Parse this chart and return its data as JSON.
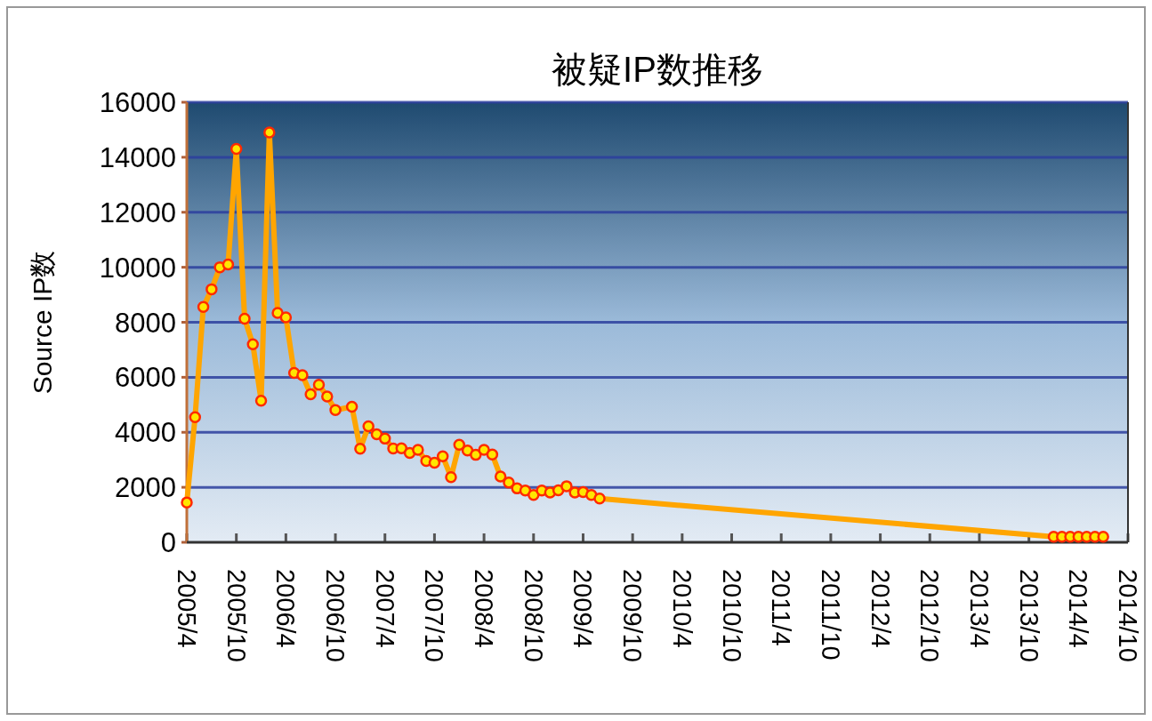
{
  "chart_data": {
    "type": "line",
    "title": "被疑IP数推移",
    "ylabel": "Source IP数",
    "x": [
      "2005-04",
      "2005-05",
      "2005-06",
      "2005-07",
      "2005-08",
      "2005-09",
      "2005-10",
      "2005-11",
      "2005-12",
      "2006-01",
      "2006-02",
      "2006-03",
      "2006-04",
      "2006-05",
      "2006-06",
      "2006-07",
      "2006-08",
      "2006-09",
      "2006-10",
      "2006-12",
      "2007-01",
      "2007-02",
      "2007-03",
      "2007-04",
      "2007-05",
      "2007-06",
      "2007-07",
      "2007-08",
      "2007-09",
      "2007-10",
      "2007-11",
      "2007-12",
      "2008-01",
      "2008-02",
      "2008-03",
      "2008-04",
      "2008-05",
      "2008-06",
      "2008-07",
      "2008-08",
      "2008-09",
      "2008-10",
      "2008-11",
      "2008-12",
      "2009-01",
      "2009-02",
      "2009-03",
      "2009-04",
      "2009-05",
      "2009-06",
      "2014-01",
      "2014-02",
      "2014-03",
      "2014-04",
      "2014-05",
      "2014-06",
      "2014-07"
    ],
    "series": [
      {
        "color": "#ffa500",
        "values": [
          1450,
          4550,
          8560,
          9200,
          10000,
          10100,
          14300,
          8130,
          7200,
          5150,
          14900,
          8340,
          8180,
          6160,
          6080,
          5380,
          5730,
          5300,
          4810,
          4930,
          3400,
          4220,
          3930,
          3770,
          3410,
          3420,
          3250,
          3360,
          2960,
          2890,
          3130,
          2370,
          3550,
          3340,
          3180,
          3360,
          3190,
          2390,
          2170,
          1960,
          1880,
          1720,
          1880,
          1810,
          1890,
          2040,
          1810,
          1830,
          1720,
          1590,
          200,
          200,
          200,
          200,
          200,
          200,
          200
        ]
      }
    ],
    "xlim": [
      "2005-04",
      "2014-10"
    ],
    "xticks": [
      {
        "value": "2005-04",
        "label": "2005/4"
      },
      {
        "value": "2005-10",
        "label": "2005/10"
      },
      {
        "value": "2006-04",
        "label": "2006/4"
      },
      {
        "value": "2006-10",
        "label": "2006/10"
      },
      {
        "value": "2007-04",
        "label": "2007/4"
      },
      {
        "value": "2007-10",
        "label": "2007/10"
      },
      {
        "value": "2008-04",
        "label": "2008/4"
      },
      {
        "value": "2008-10",
        "label": "2008/10"
      },
      {
        "value": "2009-04",
        "label": "2009/4"
      },
      {
        "value": "2009-10",
        "label": "2009/10"
      },
      {
        "value": "2010-04",
        "label": "2010/4"
      },
      {
        "value": "2010-10",
        "label": "2010/10"
      },
      {
        "value": "2011-04",
        "label": "2011/4"
      },
      {
        "value": "2011-10",
        "label": "2011/10"
      },
      {
        "value": "2012-04",
        "label": "2012/4"
      },
      {
        "value": "2012-10",
        "label": "2012/10"
      },
      {
        "value": "2013-04",
        "label": "2013/4"
      },
      {
        "value": "2013-10",
        "label": "2013/10"
      },
      {
        "value": "2014-04",
        "label": "2014/4"
      },
      {
        "value": "2014-10",
        "label": "2014/10"
      }
    ],
    "ylim": [
      0,
      16000
    ],
    "yticks": [
      0,
      2000,
      4000,
      6000,
      8000,
      10000,
      12000,
      14000,
      16000
    ],
    "grid": "y",
    "marker": "circle",
    "line_style": "solid"
  }
}
